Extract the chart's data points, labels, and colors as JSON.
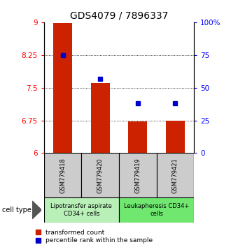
{
  "title": "GDS4079 / 7896337",
  "samples": [
    "GSM779418",
    "GSM779420",
    "GSM779419",
    "GSM779421"
  ],
  "red_values": [
    8.98,
    7.61,
    6.72,
    6.75
  ],
  "blue_values": [
    75,
    57,
    38,
    38
  ],
  "ylim_left": [
    6,
    9
  ],
  "ylim_right": [
    0,
    100
  ],
  "yticks_left": [
    6,
    6.75,
    7.5,
    8.25,
    9
  ],
  "yticks_right": [
    0,
    25,
    50,
    75,
    100
  ],
  "ytick_labels_left": [
    "6",
    "6.75",
    "7.5",
    "8.25",
    "9"
  ],
  "ytick_labels_right": [
    "0",
    "25",
    "50",
    "75",
    "100%"
  ],
  "dotted_lines": [
    6.75,
    7.5,
    8.25
  ],
  "groups": [
    {
      "label": "Lipotransfer aspirate\nCD34+ cells",
      "samples": [
        0,
        1
      ],
      "color": "#b8f0b8"
    },
    {
      "label": "Leukapheresis CD34+\ncells",
      "samples": [
        2,
        3
      ],
      "color": "#70e870"
    }
  ],
  "legend_red": "transformed count",
  "legend_blue": "percentile rank within the sample",
  "cell_type_label": "cell type",
  "bar_color": "#cc2200",
  "dot_color": "#0000cc",
  "bar_width": 0.5,
  "title_fontsize": 10,
  "tick_fontsize": 7.5,
  "label_fontsize": 7
}
